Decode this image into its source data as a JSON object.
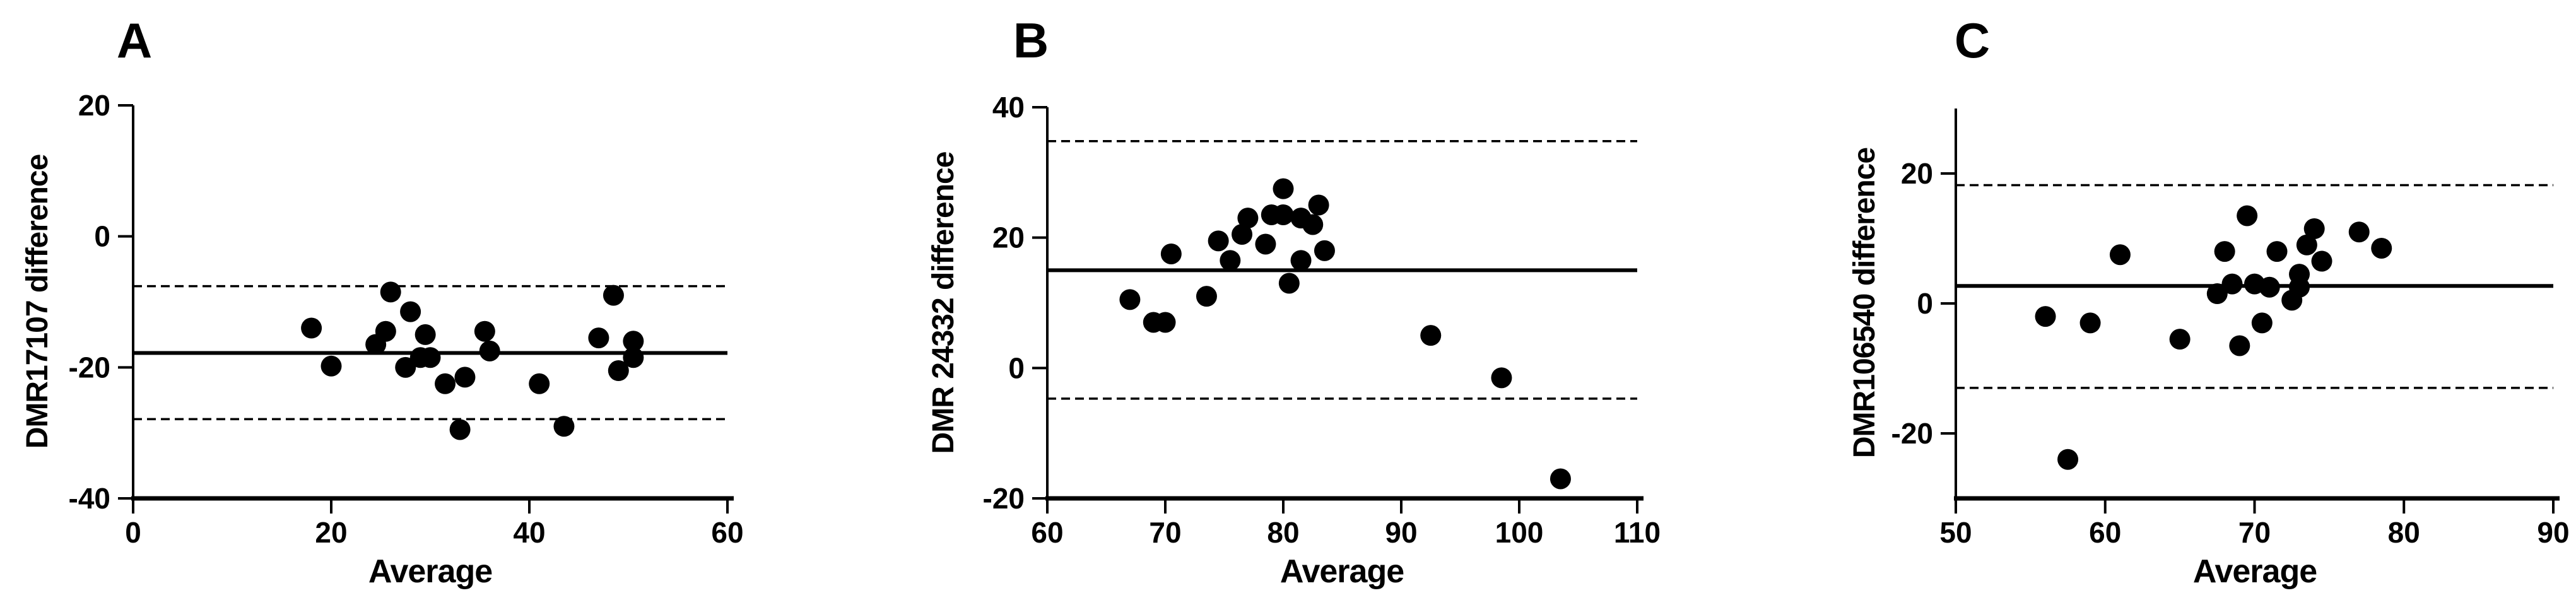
{
  "figure": {
    "background_color": "#ffffff",
    "ink_color": "#000000",
    "description_visible_panels": [
      "A",
      "B",
      "C"
    ]
  },
  "chart_data": [
    {
      "panel": "A",
      "type": "scatter",
      "xlabel": "Average",
      "ylabel": "DMR17107 difference",
      "xlim": [
        0,
        60
      ],
      "ylim": [
        -40,
        20
      ],
      "xticks": [
        0,
        20,
        40,
        60
      ],
      "yticks": [
        20,
        0,
        -20,
        -40
      ],
      "grid": false,
      "legend": false,
      "marker_color": "#000000",
      "mean_line": -17.8,
      "upper_limit": -7.6,
      "lower_limit": -27.9,
      "points": [
        [
          18,
          -14
        ],
        [
          20,
          -19.8
        ],
        [
          24.5,
          -16.5
        ],
        [
          25.5,
          -14.5
        ],
        [
          26,
          -8.5
        ],
        [
          27.5,
          -20
        ],
        [
          28,
          -11.5
        ],
        [
          29,
          -18.5
        ],
        [
          29.5,
          -15
        ],
        [
          30,
          -18.5
        ],
        [
          31.5,
          -22.5
        ],
        [
          33,
          -29.5
        ],
        [
          33.5,
          -21.5
        ],
        [
          35.5,
          -14.5
        ],
        [
          36,
          -17.5
        ],
        [
          41,
          -22.5
        ],
        [
          43.5,
          -29
        ],
        [
          47,
          -15.5
        ],
        [
          48.5,
          -9
        ],
        [
          49,
          -20.5
        ],
        [
          50.5,
          -16
        ],
        [
          50.5,
          -18.5
        ]
      ]
    },
    {
      "panel": "B",
      "type": "scatter",
      "xlabel": "Average",
      "ylabel": "DMR 24332 difference",
      "xlim": [
        60,
        110
      ],
      "ylim": [
        -20,
        40
      ],
      "xticks": [
        60,
        70,
        80,
        90,
        100,
        110
      ],
      "yticks": [
        40,
        20,
        0,
        -20
      ],
      "grid": false,
      "legend": false,
      "marker_color": "#000000",
      "mean_line": 15.0,
      "upper_limit": 34.8,
      "lower_limit": -4.7,
      "points": [
        [
          67,
          10.5
        ],
        [
          69,
          7
        ],
        [
          70,
          7
        ],
        [
          70.5,
          17.5
        ],
        [
          73.5,
          11
        ],
        [
          74.5,
          19.5
        ],
        [
          75.5,
          16.5
        ],
        [
          76.5,
          20.5
        ],
        [
          77,
          23
        ],
        [
          78.5,
          19
        ],
        [
          79,
          23.5
        ],
        [
          80,
          23.5
        ],
        [
          80,
          27.5
        ],
        [
          80.5,
          13
        ],
        [
          81.5,
          16.5
        ],
        [
          81.5,
          23
        ],
        [
          82.5,
          22
        ],
        [
          83,
          25
        ],
        [
          83.5,
          18
        ],
        [
          92.5,
          5
        ],
        [
          98.5,
          -1.5
        ],
        [
          103.5,
          -17
        ]
      ]
    },
    {
      "panel": "C",
      "type": "scatter",
      "xlabel": "Average",
      "ylabel": "DMR106540 difference",
      "xlim": [
        50,
        90
      ],
      "ylim": [
        -30,
        30
      ],
      "xticks": [
        50,
        60,
        70,
        80,
        90
      ],
      "yticks": [
        20,
        0,
        -20
      ],
      "grid": false,
      "legend": false,
      "marker_color": "#000000",
      "mean_line": 2.7,
      "upper_limit": 18.2,
      "lower_limit": -13.0,
      "points": [
        [
          56,
          -2
        ],
        [
          57.5,
          -24
        ],
        [
          59,
          -3
        ],
        [
          61,
          7.5
        ],
        [
          65,
          -5.5
        ],
        [
          67.5,
          1.5
        ],
        [
          68,
          8
        ],
        [
          68.5,
          3
        ],
        [
          69,
          -6.5
        ],
        [
          69.5,
          13.5
        ],
        [
          70,
          3
        ],
        [
          70.5,
          -3
        ],
        [
          71,
          2.5
        ],
        [
          71.5,
          8
        ],
        [
          72.5,
          0.5
        ],
        [
          73,
          2.5
        ],
        [
          73,
          4.5
        ],
        [
          73.5,
          9
        ],
        [
          74,
          11.5
        ],
        [
          74.5,
          6.5
        ],
        [
          77,
          11
        ],
        [
          78.5,
          8.5
        ]
      ]
    }
  ]
}
